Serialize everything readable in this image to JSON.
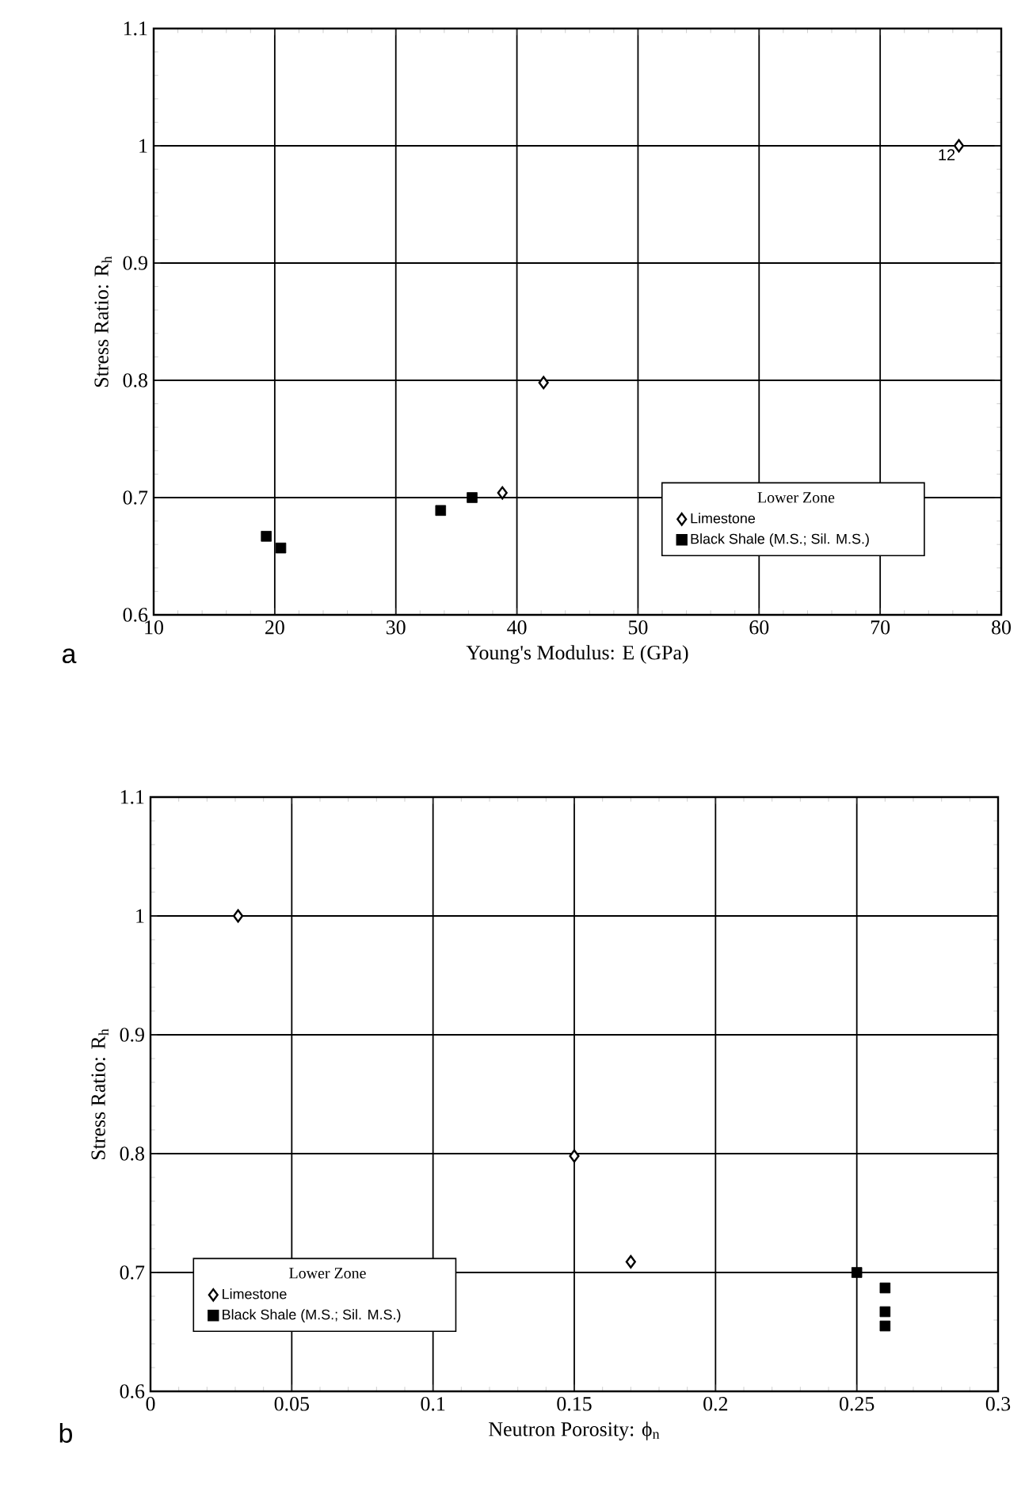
{
  "chart_data": [
    {
      "type": "scatter",
      "xlabel": "Young's Modulus: E (GPa)",
      "ylabel": "Stress Ratio: R$_{h}$",
      "legend_title": "Lower Zone",
      "series": [
        {
          "name": "Limestone",
          "color": "#000000",
          "marker": "diamond",
          "x": [
            76.5,
            42.2,
            38.8
          ],
          "values": [
            1.0,
            0.798,
            0.704
          ]
        },
        {
          "name": "Black Shale (M.S.; Sil. M.S.)",
          "color": "#000000",
          "marker": "square",
          "x": [
            19.3,
            20.5,
            33.7,
            36.3
          ],
          "values": [
            0.667,
            0.657,
            0.689,
            0.7
          ]
        }
      ],
      "xlim": [
        10,
        80
      ],
      "ylim": [
        0.6,
        1.1
      ],
      "xticks": [
        10,
        20,
        30,
        40,
        50,
        60,
        70,
        80
      ],
      "yticks": [
        0.6,
        0.7,
        0.8,
        0.9,
        1,
        1.1
      ],
      "grid": true,
      "legend": "bottom right",
      "annotations": [
        "a",
        {
          "text": "12",
          "x": 76.5,
          "y": 1.0
        }
      ]
    },
    {
      "type": "scatter",
      "xlabel": "Neutron Porosity: ϕ$_{n}$",
      "ylabel": "Stress Ratio: R$_{h}$",
      "legend_title": "Lower Zone",
      "series": [
        {
          "name": "Limestone",
          "color": "#000000",
          "marker": "diamond",
          "x": [
            0.031,
            0.15,
            0.17
          ],
          "values": [
            1.0,
            0.798,
            0.709
          ]
        },
        {
          "name": "Black Shale (M.S.; Sil. M.S.)",
          "color": "#000000",
          "marker": "square",
          "x": [
            0.25,
            0.26,
            0.26,
            0.26
          ],
          "values": [
            0.7,
            0.687,
            0.667,
            0.655
          ]
        }
      ],
      "xlim": [
        0,
        0.3
      ],
      "ylim": [
        0.6,
        1.1
      ],
      "xticks": [
        0,
        0.05,
        0.1,
        0.15,
        0.2,
        0.25,
        0.3
      ],
      "yticks": [
        0.6,
        0.7,
        0.8,
        0.9,
        1,
        1.1
      ],
      "grid": true,
      "legend": "bottom left",
      "annotations": [
        "b"
      ]
    }
  ]
}
